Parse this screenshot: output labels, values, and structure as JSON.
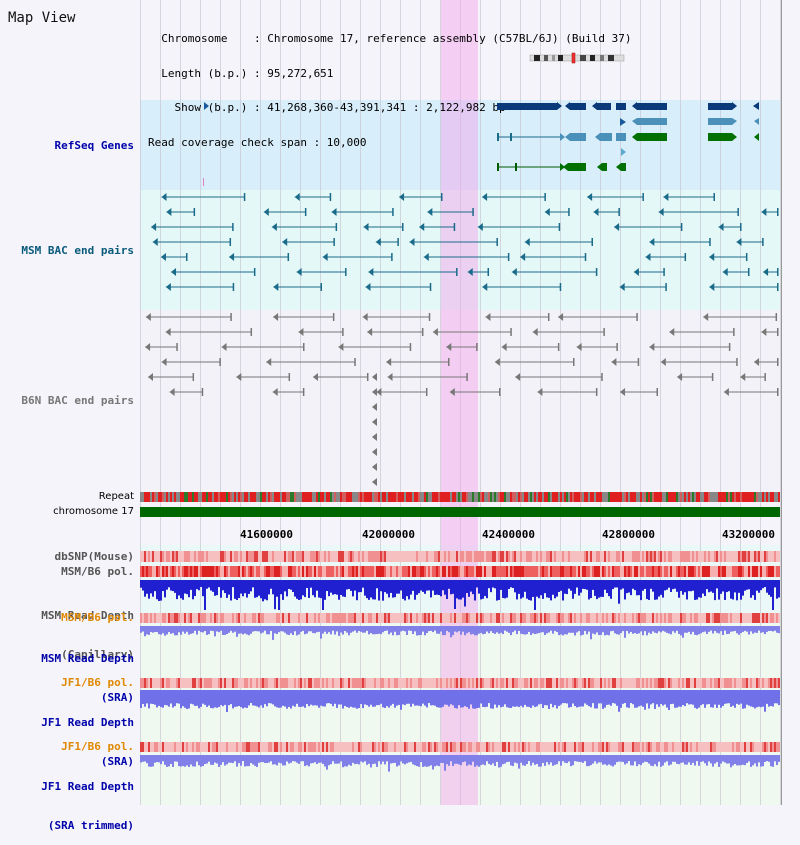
{
  "header": {
    "title": "Map View",
    "info_lines": [
      "  Chromosome    : Chromosome 17, reference assembly (C57BL/6J) (Build 37)",
      "  Length (b.p.) : 95,272,651",
      "    Show (b.p.) : 41,268,360-43,391,341 : 2,122,982 bp",
      "Read coverage check span : 10,000"
    ]
  },
  "tracks": {
    "refseq": "RefSeq Genes",
    "msm_bac": "MSM BAC end pairs",
    "b6n_bac": "B6N BAC end pairs",
    "repeat": "Repeat",
    "chromosome": "chromosome 17",
    "dbsnp": "dbSNP(Mouse)",
    "msm_b6_pol": "MSM/B6 pol.",
    "msm_depth_cap_1": "MSM Read Depth",
    "msm_depth_cap_2": "(Capillary)",
    "msm_b6_pol2": "MSM/B6 pol.",
    "msm_depth_sra_1": "MSM Read Depth",
    "msm_depth_sra_2": "(SRA)",
    "jf1_b6_pol": "JF1/B6 pol.",
    "jf1_depth_sra_1": "JF1 Read Depth",
    "jf1_depth_sra_2": "(SRA)",
    "jf1_b6_pol2": "JF1/B6 pol.",
    "jf1_depth_trim_1": "JF1 Read Depth",
    "jf1_depth_trim_2": "(SRA trimmed)"
  },
  "ruler": {
    "ticks": [
      "41600000",
      "42000000",
      "42400000",
      "42800000",
      "43200000"
    ]
  },
  "colors": {
    "label_blue": "#0000aa",
    "label_orange": "#e08800",
    "refseq_bg": "#d8eefa",
    "msm_bg": "#e4f8f8",
    "b6n_bg": "#f2f2f8",
    "highlight": "#f5a0eb",
    "chrom_green": "#006600"
  }
}
